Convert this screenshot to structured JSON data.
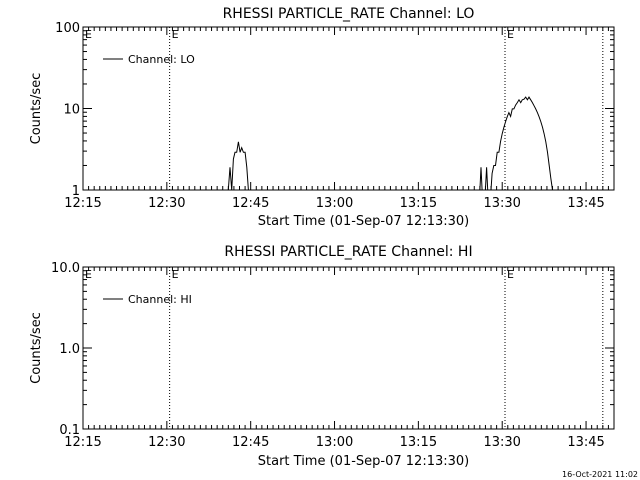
{
  "colors": {
    "background": "#ffffff",
    "foreground": "#000000"
  },
  "timestamp": "16-Oct-2021 11:02",
  "chart_data": [
    {
      "type": "line",
      "title": "RHESSI PARTICLE_RATE Channel: LO",
      "xlabel": "Start Time (01-Sep-07 12:13:30)",
      "ylabel": "Counts/sec",
      "xlim_minutes": [
        735,
        830
      ],
      "ylim": [
        1,
        100
      ],
      "yscale": "log",
      "x_tick_labels": [
        "12:15",
        "12:30",
        "12:45",
        "13:00",
        "13:15",
        "13:30",
        "13:45"
      ],
      "x_tick_minutes": [
        735,
        750,
        765,
        780,
        795,
        810,
        825
      ],
      "y_tick_labels": [
        "1",
        "10",
        "100"
      ],
      "y_tick_values": [
        1,
        10,
        100
      ],
      "legend": {
        "label": "Channel: LO",
        "placement": "top-left"
      },
      "event_markers": [
        {
          "label": "E",
          "minute": 750.5
        },
        {
          "label": "E",
          "minute": 810.5
        },
        {
          "label": "",
          "minute": 828
        }
      ],
      "series": [
        {
          "points": [
            [
              761.0,
              1.0
            ],
            [
              761.3,
              1.9
            ],
            [
              761.6,
              1.0
            ],
            [
              761.9,
              2.4
            ],
            [
              762.2,
              2.9
            ],
            [
              762.5,
              2.9
            ],
            [
              762.8,
              3.9
            ],
            [
              763.1,
              2.9
            ],
            [
              763.4,
              3.3
            ],
            [
              763.7,
              2.9
            ],
            [
              764.0,
              2.9
            ],
            [
              764.3,
              1.9
            ],
            [
              764.6,
              1.0
            ],
            [
              806.0,
              1.0
            ],
            [
              806.2,
              1.9
            ],
            [
              806.4,
              1.0
            ],
            [
              807.0,
              1.0
            ],
            [
              807.2,
              1.9
            ],
            [
              807.4,
              1.0
            ],
            [
              808.0,
              1.0
            ],
            [
              808.2,
              1.6
            ],
            [
              808.5,
              2.0
            ],
            [
              808.8,
              2.0
            ],
            [
              809.1,
              2.9
            ],
            [
              809.4,
              2.9
            ],
            [
              809.7,
              3.9
            ],
            [
              810.0,
              4.9
            ],
            [
              810.3,
              5.9
            ],
            [
              810.6,
              6.9
            ],
            [
              810.9,
              7.9
            ],
            [
              811.2,
              8.9
            ],
            [
              811.5,
              8.0
            ],
            [
              811.8,
              9.9
            ],
            [
              812.1,
              9.9
            ],
            [
              812.4,
              11.0
            ],
            [
              812.7,
              11.8
            ],
            [
              813.0,
              12.8
            ],
            [
              813.3,
              11.8
            ],
            [
              813.6,
              12.8
            ],
            [
              813.9,
              13.0
            ],
            [
              814.2,
              13.8
            ],
            [
              814.5,
              12.8
            ],
            [
              814.8,
              13.8
            ],
            [
              815.1,
              12.8
            ],
            [
              815.4,
              11.8
            ],
            [
              815.7,
              10.8
            ],
            [
              816.0,
              9.9
            ],
            [
              816.3,
              8.9
            ],
            [
              816.6,
              7.9
            ],
            [
              816.9,
              6.9
            ],
            [
              817.2,
              5.9
            ],
            [
              817.5,
              4.9
            ],
            [
              817.8,
              3.9
            ],
            [
              818.1,
              2.9
            ],
            [
              818.4,
              2.0
            ],
            [
              818.7,
              1.4
            ],
            [
              819.0,
              1.0
            ]
          ]
        }
      ]
    },
    {
      "type": "line",
      "title": "RHESSI PARTICLE_RATE Channel: HI",
      "xlabel": "Start Time (01-Sep-07 12:13:30)",
      "ylabel": "Counts/sec",
      "xlim_minutes": [
        735,
        830
      ],
      "ylim": [
        0.1,
        10
      ],
      "yscale": "log",
      "x_tick_labels": [
        "12:15",
        "12:30",
        "12:45",
        "13:00",
        "13:15",
        "13:30",
        "13:45"
      ],
      "x_tick_minutes": [
        735,
        750,
        765,
        780,
        795,
        810,
        825
      ],
      "y_tick_labels": [
        "0.1",
        "1.0",
        "10.0"
      ],
      "y_tick_values": [
        0.1,
        1,
        10
      ],
      "legend": {
        "label": "Channel: HI",
        "placement": "top-left"
      },
      "event_markers": [
        {
          "label": "E",
          "minute": 750.5
        },
        {
          "label": "E",
          "minute": 810.5
        },
        {
          "label": "",
          "minute": 828
        }
      ],
      "series": [
        {
          "points": []
        }
      ]
    }
  ]
}
